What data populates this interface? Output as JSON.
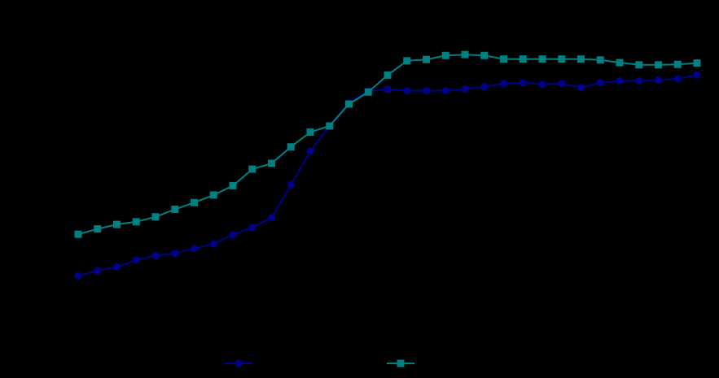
{
  "chart_data": {
    "type": "line",
    "background": "#000000",
    "title": "",
    "xlabel": "",
    "ylabel": "",
    "x": [
      1,
      2,
      3,
      4,
      5,
      6,
      7,
      8,
      9,
      10,
      11,
      12,
      13,
      14,
      15,
      16,
      17,
      18,
      19,
      20,
      21,
      22,
      23,
      24,
      25,
      26,
      27,
      28,
      29,
      30,
      31,
      32,
      33
    ],
    "ylim": [
      0.5,
      6.7
    ],
    "series": [
      {
        "name": "",
        "color": "#00008b",
        "marker": "circle",
        "values": [
          0.88,
          0.99,
          1.08,
          1.23,
          1.33,
          1.38,
          1.49,
          1.59,
          1.8,
          1.96,
          2.18,
          2.92,
          3.67,
          4.24,
          4.76,
          5.02,
          5.06,
          5.03,
          5.03,
          5.03,
          5.07,
          5.12,
          5.19,
          5.21,
          5.17,
          5.19,
          5.1,
          5.21,
          5.25,
          5.25,
          5.27,
          5.3,
          5.38
        ]
      },
      {
        "name": "",
        "color": "#008080",
        "marker": "square",
        "values": [
          1.81,
          1.93,
          2.03,
          2.09,
          2.2,
          2.37,
          2.52,
          2.69,
          2.9,
          3.27,
          3.4,
          3.77,
          4.1,
          4.24,
          4.73,
          5.0,
          5.38,
          5.7,
          5.73,
          5.82,
          5.84,
          5.82,
          5.74,
          5.74,
          5.74,
          5.74,
          5.74,
          5.72,
          5.66,
          5.61,
          5.61,
          5.62,
          5.65
        ]
      }
    ],
    "legend": {
      "position": "bottom-center",
      "entries": [
        {
          "label": "",
          "color": "#00008b",
          "marker": "circle"
        },
        {
          "label": "",
          "color": "#008080",
          "marker": "square"
        }
      ]
    },
    "grid": false
  }
}
